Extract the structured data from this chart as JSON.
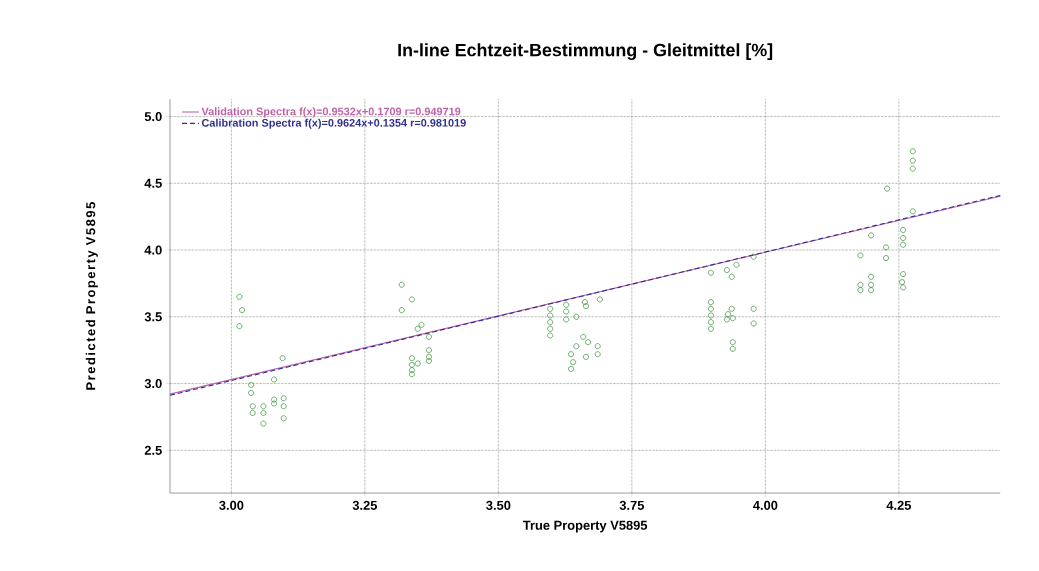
{
  "chart_data": {
    "type": "scatter",
    "title": "In-line Echtzeit-Bestimmung - Gleitmittel [%]",
    "xlabel": "True Property V5895",
    "ylabel": "Predicted Property V5895",
    "xlim": [
      2.885,
      4.44
    ],
    "ylim": [
      2.18,
      5.13
    ],
    "xticks": [
      {
        "value": 3.0,
        "label": "3.00"
      },
      3.25,
      {
        "value": 3.5,
        "label": "3.50"
      },
      3.75,
      {
        "value": 4.0,
        "label": "4.00"
      },
      4.25
    ],
    "yticks": [
      2.5,
      {
        "value": 3.0,
        "label": "3.0"
      },
      3.5,
      {
        "value": 4.0,
        "label": "4.0"
      },
      4.5,
      {
        "value": 5.0,
        "label": "5.0"
      }
    ],
    "grid": true,
    "legend": "top left",
    "series": [
      {
        "type": "line",
        "name": "Validation Spectra f(x)=0.9532x+0.1709  r=0.949719",
        "color": "#c060a8",
        "x": [
          2.885,
          4.44
        ],
        "values": [
          2.921,
          4.403
        ],
        "line_style": "solid"
      },
      {
        "type": "line",
        "name": "Calibration Spectra f(x)=0.9624x+0.1354  r=0.981019",
        "color": "#303090",
        "x": [
          2.885,
          4.44
        ],
        "values": [
          2.912,
          4.409
        ],
        "line_style": "dashed"
      },
      {
        "color": "#2e8b2e",
        "marker": "circle",
        "x": [
          3.015,
          3.02,
          3.015,
          3.096,
          3.08,
          3.037,
          3.037,
          3.08,
          3.08,
          3.098,
          3.098,
          3.098,
          3.04,
          3.04,
          3.06,
          3.06,
          3.06,
          3.319,
          3.338,
          3.319,
          3.349,
          3.356,
          3.338,
          3.338,
          3.338,
          3.338,
          3.349,
          3.37,
          3.37,
          3.37,
          3.37,
          3.597,
          3.597,
          3.597,
          3.597,
          3.597,
          3.627,
          3.627,
          3.627,
          3.662,
          3.664,
          3.646,
          3.69,
          3.659,
          3.668,
          3.646,
          3.636,
          3.64,
          3.636,
          3.664,
          3.686,
          3.686,
          3.898,
          3.898,
          3.898,
          3.898,
          3.898,
          3.898,
          3.928,
          3.937,
          3.946,
          3.978,
          3.937,
          3.93,
          3.928,
          3.939,
          3.939,
          3.939,
          3.978,
          3.978,
          4.276,
          4.276,
          4.276,
          4.228,
          4.276,
          4.258,
          4.258,
          4.258,
          4.198,
          4.178,
          4.226,
          4.226,
          4.258,
          4.256,
          4.258,
          4.178,
          4.178,
          4.198,
          4.198,
          4.198
        ],
        "values": [
          3.65,
          3.55,
          3.43,
          3.19,
          3.03,
          2.99,
          2.93,
          2.88,
          2.85,
          2.89,
          2.83,
          2.74,
          2.83,
          2.78,
          2.83,
          2.78,
          2.7,
          3.74,
          3.63,
          3.55,
          3.41,
          3.44,
          3.19,
          3.14,
          3.1,
          3.07,
          3.15,
          3.35,
          3.25,
          3.2,
          3.17,
          3.56,
          3.51,
          3.46,
          3.41,
          3.36,
          3.59,
          3.54,
          3.48,
          3.61,
          3.58,
          3.5,
          3.63,
          3.35,
          3.31,
          3.28,
          3.22,
          3.16,
          3.11,
          3.2,
          3.28,
          3.22,
          3.61,
          3.56,
          3.51,
          3.46,
          3.41,
          3.83,
          3.85,
          3.8,
          3.89,
          3.95,
          3.56,
          3.52,
          3.48,
          3.49,
          3.31,
          3.26,
          3.56,
          3.45,
          4.74,
          4.67,
          4.61,
          4.46,
          4.29,
          4.15,
          4.09,
          4.04,
          4.11,
          3.96,
          4.02,
          3.94,
          3.82,
          3.76,
          3.72,
          3.74,
          3.7,
          3.8,
          3.74,
          3.7
        ]
      }
    ]
  }
}
